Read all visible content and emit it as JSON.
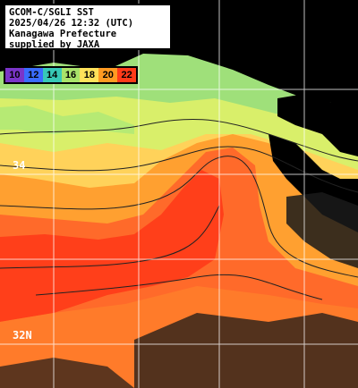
{
  "header": {
    "line1": "GCOM-C/SGLI SST",
    "line2": "2025/04/26 12:32 (UTC)",
    "line3": "Kanagawa Prefecture",
    "line4": "supplied by JAXA"
  },
  "legend": {
    "labels": [
      "10",
      "12",
      "14",
      "16",
      "18",
      "20",
      "22"
    ],
    "colors": [
      "#7a35c8",
      "#3a6cff",
      "#37c9b7",
      "#a9e36a",
      "#ffe25a",
      "#ff9a22",
      "#ff3b1a"
    ]
  },
  "grid": {
    "lat_labels": [
      "34",
      "32N"
    ]
  },
  "palette": {
    "land": "#000000",
    "grid_line": "#ffffff",
    "contour": "#222222"
  }
}
